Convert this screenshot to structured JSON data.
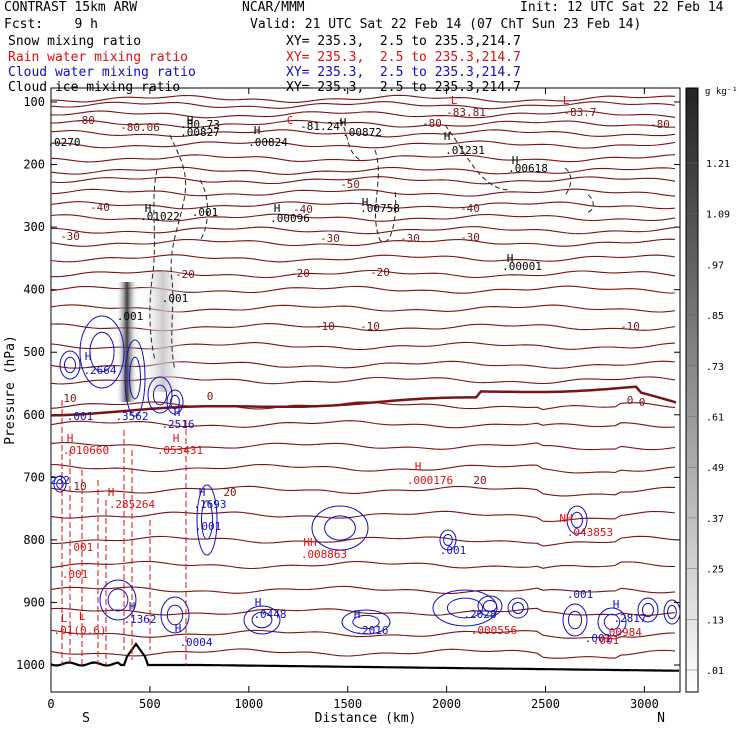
{
  "header": {
    "model": "CONTRAST 15km ARW",
    "center": "NCAR/MMM",
    "init": "Init: 12 UTC Sat 22 Feb 14",
    "fcst": "Fcst:    9 h",
    "valid": "Valid: 21 UTC Sat 22 Feb 14 (07 ChT Sun 23 Feb 14)"
  },
  "legend": [
    {
      "label": "Snow mixing ratio",
      "xy": "XY= 235.3,  2.5 to 235.3,214.7",
      "color": "#000000"
    },
    {
      "label": "Rain water mixing ratio",
      "xy": "XY= 235.3,  2.5 to 235.3,214.7",
      "color": "#dd1111"
    },
    {
      "label": "Cloud water mixing ratio",
      "xy": "XY= 235.3,  2.5 to 235.3,214.7",
      "color": "#1111bb"
    },
    {
      "label": "Cloud ice mixing ratio",
      "xy": "XY= 235.3,  2.5 to 235.3,214.7",
      "color": "#000000"
    }
  ],
  "chart_data": {
    "type": "cross-section",
    "xlabel": "Distance (km)",
    "ylabel": "Pressure (hPa)",
    "xlim": [
      0,
      3180
    ],
    "ylim": [
      1050,
      50
    ],
    "x_ticks": [
      0,
      500,
      1000,
      1500,
      2000,
      2500,
      3000
    ],
    "y_ticks": [
      100,
      200,
      300,
      400,
      500,
      600,
      700,
      800,
      900,
      1000
    ],
    "end_labels": {
      "left": "S",
      "right": "N"
    },
    "colorbar": {
      "unit": "g kg⁻¹",
      "labels": [
        "1.21",
        "1.09",
        ".97",
        ".85",
        ".73",
        ".61",
        ".49",
        ".37",
        ".25",
        ".13",
        ".01"
      ]
    },
    "temperature_labels": [
      "-80",
      "-80.06",
      "-80",
      "-83.81",
      "-83.7",
      "-80",
      "-50",
      "-40",
      "-40",
      "-40",
      "-30",
      "-30",
      "-30",
      "-30",
      "-20",
      "-20",
      "-20",
      "-10",
      "-10",
      "-10",
      "0",
      "0",
      "10",
      "10",
      "20",
      "20"
    ],
    "annotations": [
      {
        "text": "H",
        "color": "#000000"
      },
      {
        "text": ".80.73",
        "color": "#000000"
      },
      {
        "text": ".00827",
        "color": "#000000"
      },
      {
        "text": "H",
        "color": "#000000"
      },
      {
        "text": ".00824",
        "color": "#000000"
      },
      {
        "text": "-81.24",
        "color": "#000000"
      },
      {
        "text": "H",
        "color": "#000000"
      },
      {
        "text": ".00872",
        "color": "#000000"
      },
      {
        "text": ".0270",
        "color": "#000000"
      },
      {
        "text": "H",
        "color": "#000000"
      },
      {
        "text": ".01231",
        "color": "#000000"
      },
      {
        "text": "H",
        "color": "#000000"
      },
      {
        "text": ".00618",
        "color": "#000000"
      },
      {
        "text": "H",
        "color": "#000000"
      },
      {
        "text": ".01022",
        "color": "#000000"
      },
      {
        "text": ".001",
        "color": "#000000"
      },
      {
        "text": "H",
        "color": "#000000"
      },
      {
        "text": ".00096",
        "color": "#000000"
      },
      {
        "text": "H",
        "color": "#000000"
      },
      {
        "text": ".00758",
        "color": "#000000"
      },
      {
        "text": "H",
        "color": "#000000"
      },
      {
        "text": ".00001",
        "color": "#000000"
      },
      {
        "text": ".001",
        "color": "#000000"
      },
      {
        "text": ".001",
        "color": "#000000"
      },
      {
        "text": "H",
        "color": "#1111bb"
      },
      {
        "text": ".2664",
        "color": "#1111bb"
      },
      {
        "text": ".001",
        "color": "#1111bb"
      },
      {
        "text": ".3562",
        "color": "#1111bb"
      },
      {
        "text": "H",
        "color": "#1111bb"
      },
      {
        "text": ".2516",
        "color": "#1111bb"
      },
      {
        "text": "H",
        "color": "#dd1111"
      },
      {
        "text": ".010660",
        "color": "#dd1111"
      },
      {
        "text": "H",
        "color": "#dd1111"
      },
      {
        "text": ".053431",
        "color": "#dd1111"
      },
      {
        "text": "H",
        "color": "#dd1111"
      },
      {
        "text": ".000176",
        "color": "#dd1111"
      },
      {
        "text": "H",
        "color": "#dd1111"
      },
      {
        "text": ".285264",
        "color": "#dd1111"
      },
      {
        "text": "H",
        "color": "#1111bb"
      },
      {
        "text": ".1693",
        "color": "#1111bb"
      },
      {
        "text": ".001",
        "color": "#1111bb"
      },
      {
        "text": "HH",
        "color": "#dd1111"
      },
      {
        "text": ".008863",
        "color": "#dd1111"
      },
      {
        "text": ".001",
        "color": "#1111bb"
      },
      {
        "text": "NH",
        "color": "#dd1111"
      },
      {
        "text": ".043853",
        "color": "#dd1111"
      },
      {
        "text": ".001",
        "color": "#dd1111"
      },
      {
        "text": ".001",
        "color": "#dd1111"
      },
      {
        "text": "L",
        "color": "#dd1111"
      },
      {
        "text": ".01(0.6)",
        "color": "#dd1111"
      },
      {
        "text": "H",
        "color": "#1111bb"
      },
      {
        "text": ".1362",
        "color": "#1111bb"
      },
      {
        "text": "H",
        "color": "#1111bb"
      },
      {
        "text": ".0004",
        "color": "#1111bb"
      },
      {
        "text": "H",
        "color": "#1111bb"
      },
      {
        "text": ".0448",
        "color": "#1111bb"
      },
      {
        "text": "H",
        "color": "#1111bb"
      },
      {
        "text": ".2016",
        "color": "#1111bb"
      },
      {
        "text": ".2028",
        "color": "#1111bb"
      },
      {
        "text": ".000556",
        "color": "#dd1111"
      },
      {
        "text": ".001",
        "color": "#1111bb"
      },
      {
        "text": "H",
        "color": "#1111bb"
      },
      {
        "text": ".2817",
        "color": "#1111bb"
      },
      {
        "text": ".001",
        "color": "#1111bb"
      },
      {
        "text": ".00984",
        "color": "#dd1111"
      },
      {
        "text": ".001",
        "color": "#dd1111"
      },
      {
        "text": "232",
        "color": "#1111bb"
      },
      {
        "text": "L",
        "color": "#dd1111"
      },
      {
        "text": "L",
        "color": "#dd1111"
      },
      {
        "text": "L",
        "color": "#dd1111"
      },
      {
        "text": "C",
        "color": "#dd1111"
      }
    ]
  }
}
